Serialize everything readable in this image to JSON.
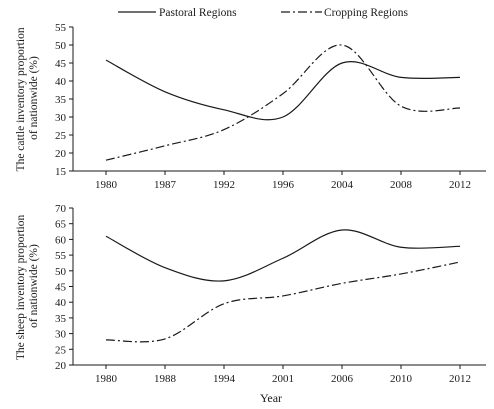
{
  "chart_data": [
    {
      "type": "line",
      "ylabel": "The cattle inventory proportion of nationwide (%)",
      "xlabel": "",
      "categories": [
        "1980",
        "1987",
        "1992",
        "1996",
        "2004",
        "2008",
        "2012"
      ],
      "ylim": [
        15,
        55
      ],
      "yticks": [
        15,
        20,
        25,
        30,
        35,
        40,
        45,
        50,
        55
      ],
      "series": [
        {
          "name": "Pastoral Regions",
          "style": "solid",
          "values": [
            45.8,
            37.0,
            32.0,
            30.0,
            45.0,
            41.0,
            41.0
          ]
        },
        {
          "name": "Cropping Regions",
          "style": "dashdot",
          "values": [
            18.0,
            22.0,
            26.5,
            36.5,
            50.0,
            33.0,
            32.5
          ]
        }
      ],
      "legend": "top"
    },
    {
      "type": "line",
      "ylabel": "The sheep inventory proportion of nationwide (%)",
      "xlabel": "Year",
      "categories": [
        "1980",
        "1988",
        "1994",
        "2001",
        "2006",
        "2010",
        "2012"
      ],
      "ylim": [
        20,
        70
      ],
      "yticks": [
        20,
        25,
        30,
        35,
        40,
        45,
        50,
        55,
        60,
        65,
        70
      ],
      "series": [
        {
          "name": "Pastoral Regions",
          "style": "solid",
          "values": [
            61.0,
            51.0,
            46.8,
            54.0,
            63.0,
            57.5,
            57.8
          ]
        },
        {
          "name": "Cropping Regions",
          "style": "dashdot",
          "values": [
            28.0,
            28.3,
            39.5,
            42.0,
            46.0,
            49.0,
            52.8
          ]
        }
      ]
    }
  ],
  "colors": {
    "line": "#1a1a1a",
    "axis": "#1a1a1a"
  }
}
